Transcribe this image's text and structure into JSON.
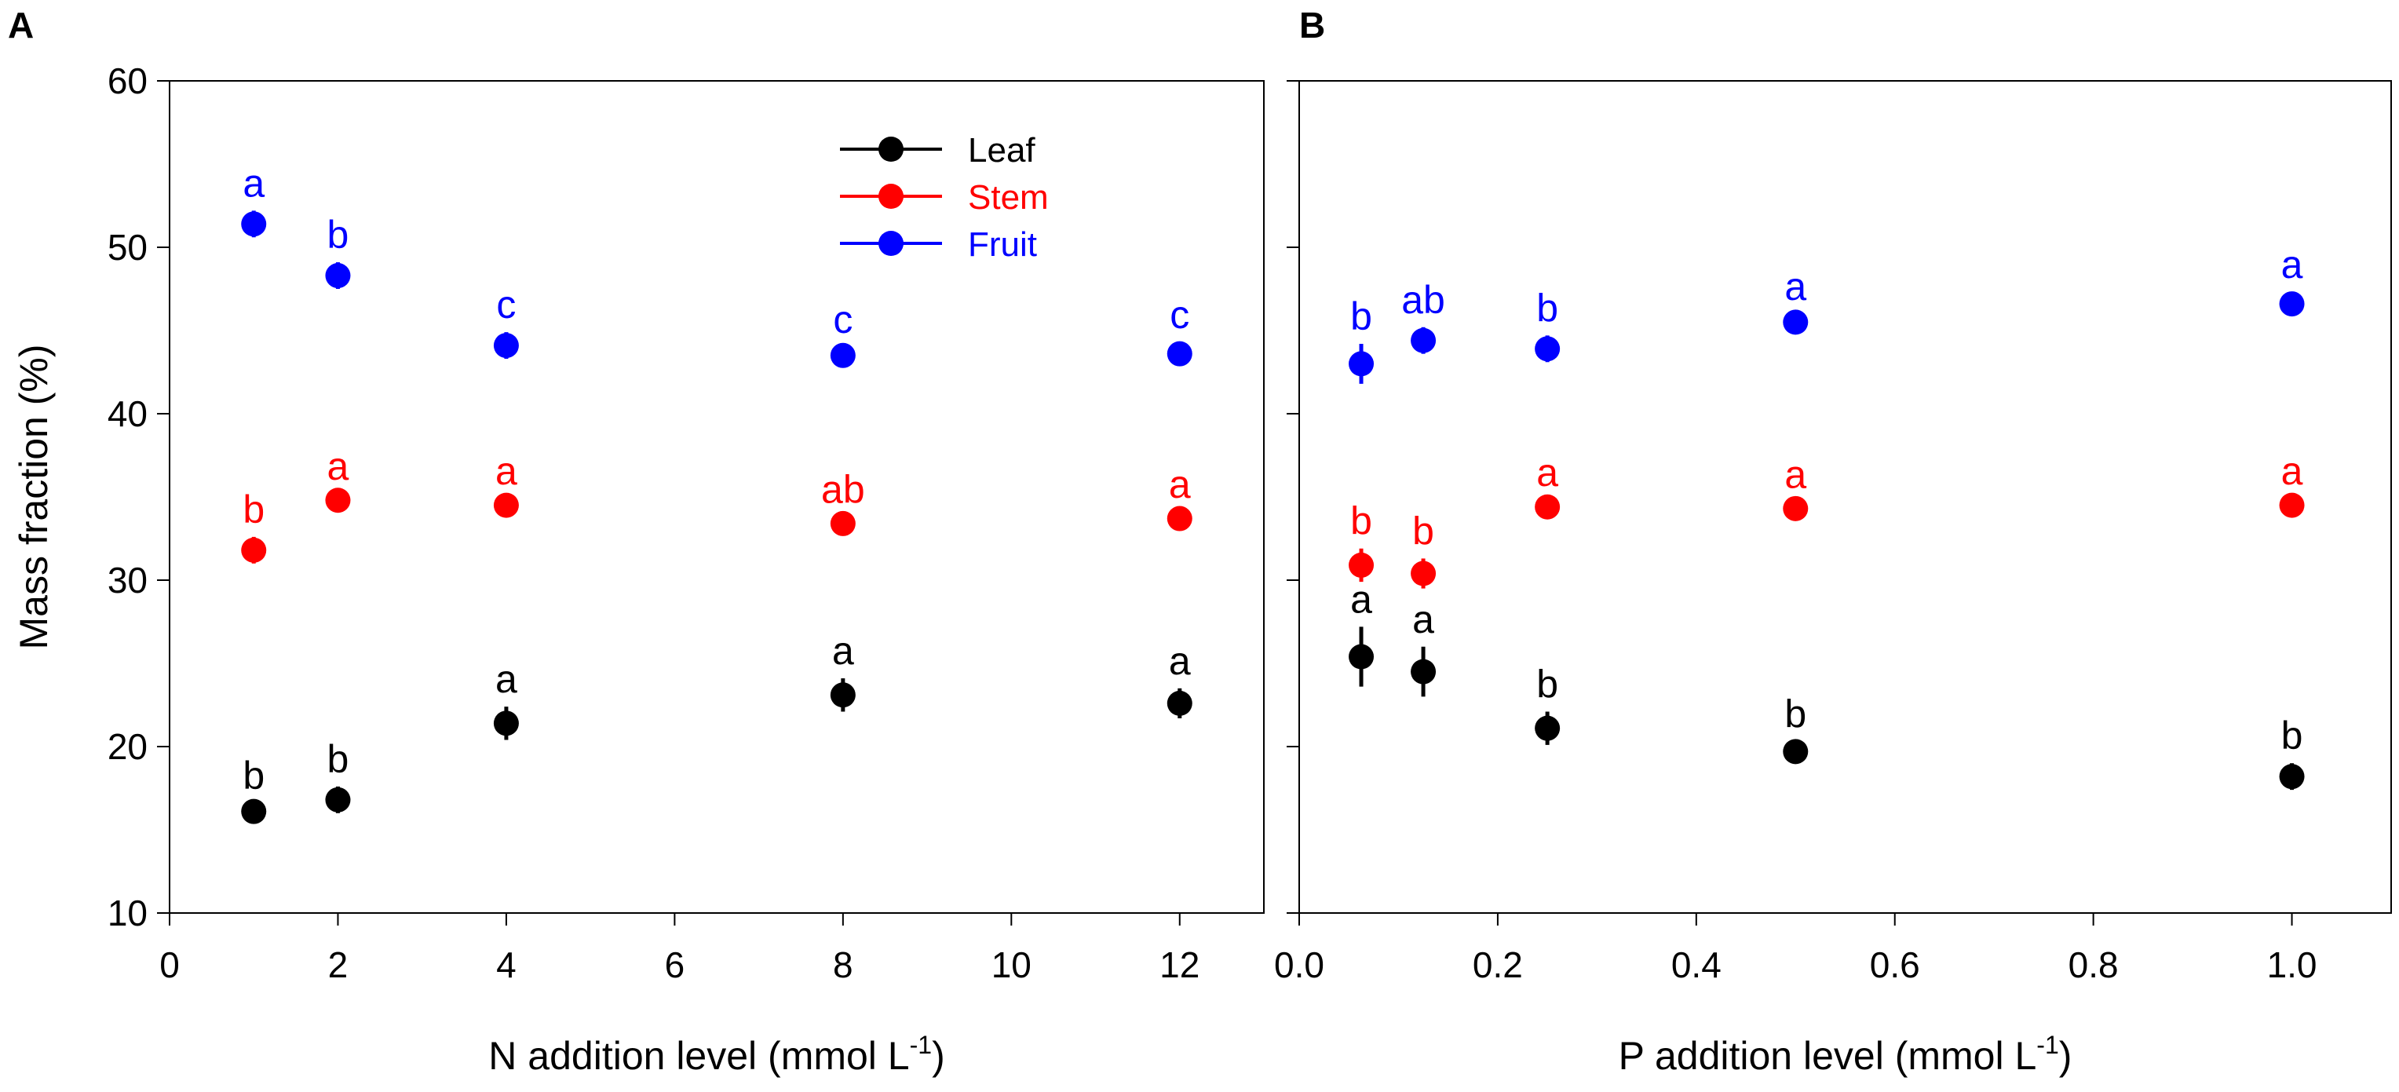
{
  "chart_data": [
    {
      "type": "scatter",
      "panel_label": "A",
      "xlabel": "N addition level (mmol L",
      "xlabel_sup": "-1",
      "xlabel_close": ")",
      "ylabel": "Mass fraction (%)",
      "xlim": [
        0,
        13
      ],
      "ylim": [
        10,
        60
      ],
      "x_ticks": [
        0,
        2,
        4,
        6,
        8,
        10,
        12
      ],
      "x_tick_labels": [
        "0",
        "2",
        "4",
        "6",
        "8",
        "10",
        "12"
      ],
      "y_ticks": [
        10,
        20,
        30,
        40,
        50,
        60
      ],
      "y_tick_labels": [
        "10",
        "20",
        "30",
        "40",
        "50",
        "60"
      ],
      "legend_position": "top-center",
      "series": [
        {
          "name": "Leaf",
          "color": "#000000",
          "x": [
            1,
            2,
            4,
            8,
            12
          ],
          "y": [
            16.1,
            16.8,
            21.4,
            23.1,
            22.6
          ],
          "err": [
            0.5,
            0.8,
            1.0,
            1.0,
            0.9
          ],
          "letters": [
            "b",
            "b",
            "a",
            "a",
            "a"
          ]
        },
        {
          "name": "Stem",
          "color": "#ff0000",
          "x": [
            1,
            2,
            4,
            8,
            12
          ],
          "y": [
            31.8,
            34.8,
            34.5,
            33.4,
            33.7
          ],
          "err": [
            0.8,
            0.4,
            0.4,
            0.4,
            0.4
          ],
          "letters": [
            "b",
            "a",
            "a",
            "ab",
            "a"
          ]
        },
        {
          "name": "Fruit",
          "color": "#0000ff",
          "x": [
            1,
            2,
            4,
            8,
            12
          ],
          "y": [
            51.4,
            48.3,
            44.1,
            43.5,
            43.6
          ],
          "err": [
            0.8,
            0.8,
            0.8,
            0.5,
            0.7
          ],
          "letters": [
            "a",
            "b",
            "c",
            "c",
            "c"
          ]
        }
      ]
    },
    {
      "type": "scatter",
      "panel_label": "B",
      "xlabel": "P addition level (mmol L",
      "xlabel_sup": "-1",
      "xlabel_close": ")",
      "ylabel": "",
      "xlim": [
        0,
        1.1
      ],
      "ylim": [
        10,
        60
      ],
      "x_ticks": [
        0,
        0.2,
        0.4,
        0.6,
        0.8,
        1.0
      ],
      "x_tick_labels": [
        "0.0",
        "0.2",
        "0.4",
        "0.6",
        "0.8",
        "1.0"
      ],
      "y_ticks": [
        10,
        20,
        30,
        40,
        50,
        60
      ],
      "y_tick_labels": [],
      "series": [
        {
          "name": "Leaf",
          "color": "#000000",
          "x": [
            0.0625,
            0.125,
            0.25,
            0.5,
            1.0
          ],
          "y": [
            25.4,
            24.5,
            21.1,
            19.7,
            18.2
          ],
          "err": [
            1.8,
            1.5,
            1.0,
            0.6,
            0.8
          ],
          "letters": [
            "a",
            "a",
            "b",
            "b",
            "b"
          ]
        },
        {
          "name": "Stem",
          "color": "#ff0000",
          "x": [
            0.0625,
            0.125,
            0.25,
            0.5,
            1.0
          ],
          "y": [
            30.9,
            30.4,
            34.4,
            34.3,
            34.5
          ],
          "err": [
            1.0,
            0.9,
            0.4,
            0.4,
            0.4
          ],
          "letters": [
            "b",
            "b",
            "a",
            "a",
            "a"
          ]
        },
        {
          "name": "Fruit",
          "color": "#0000ff",
          "x": [
            0.0625,
            0.125,
            0.25,
            0.5,
            1.0
          ],
          "y": [
            43.0,
            44.4,
            43.9,
            45.5,
            46.6
          ],
          "err": [
            1.2,
            0.8,
            0.8,
            0.5,
            0.7
          ],
          "letters": [
            "b",
            "ab",
            "b",
            "a",
            "a"
          ]
        }
      ]
    }
  ]
}
